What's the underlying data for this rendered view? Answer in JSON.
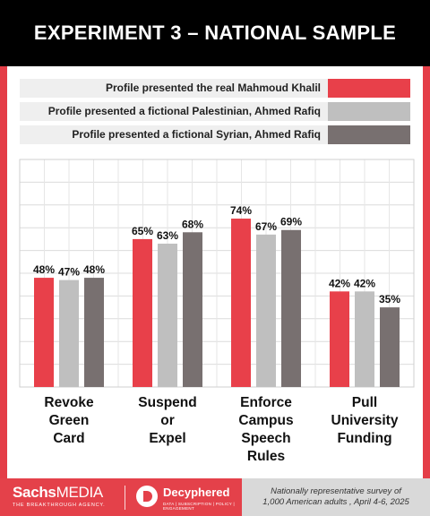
{
  "header": {
    "title": "EXPERIMENT 3 – NATIONAL SAMPLE"
  },
  "colors": {
    "accent": "#e43d47",
    "series": [
      "#e8404a",
      "#bfbfbf",
      "#787070"
    ]
  },
  "chart_data": {
    "type": "bar",
    "title": "EXPERIMENT 3 – NATIONAL SAMPLE",
    "categories": [
      [
        "Revoke",
        "Green",
        "Card"
      ],
      [
        "Suspend",
        "or",
        "Expel"
      ],
      [
        "Enforce",
        "Campus",
        "Speech",
        "Rules"
      ],
      [
        "Pull",
        "University",
        "Funding"
      ]
    ],
    "series": [
      {
        "name": "Profile presented the real Mahmoud Khalil",
        "values": [
          48,
          65,
          74,
          42
        ]
      },
      {
        "name": "Profile presented a fictional Palestinian, Ahmed Rafiq",
        "values": [
          47,
          63,
          67,
          42
        ]
      },
      {
        "name": "Profile presented a fictional Syrian, Ahmed Rafiq",
        "values": [
          48,
          68,
          69,
          35
        ]
      }
    ],
    "value_suffix": "%",
    "ylim": [
      0,
      100
    ],
    "grid": true,
    "legend_position": "top"
  },
  "footer": {
    "brand1_main": "Sachs",
    "brand1_media": "MEDIA",
    "brand1_tag": "THE BREAKTHROUGH AGENCY.",
    "brand2": "Decyphered",
    "brand2_tag": "DATA | SUBSCRIPTION | POLICY | ENGAGEMENT",
    "note_line1": "Nationally representative survey of",
    "note_line2": "1,000 American adults , April 4-6, 2025"
  }
}
